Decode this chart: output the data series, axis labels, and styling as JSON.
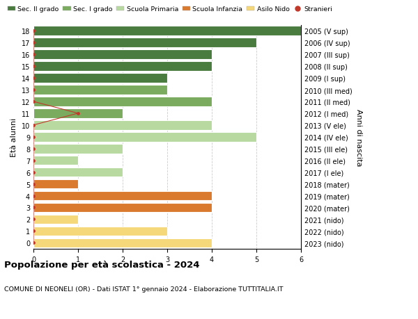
{
  "ages": [
    18,
    17,
    16,
    15,
    14,
    13,
    12,
    11,
    10,
    9,
    8,
    7,
    6,
    5,
    4,
    3,
    2,
    1,
    0
  ],
  "years": [
    "2005 (V sup)",
    "2006 (IV sup)",
    "2007 (III sup)",
    "2008 (II sup)",
    "2009 (I sup)",
    "2010 (III med)",
    "2011 (II med)",
    "2012 (I med)",
    "2013 (V ele)",
    "2014 (IV ele)",
    "2015 (III ele)",
    "2016 (II ele)",
    "2017 (I ele)",
    "2018 (mater)",
    "2019 (mater)",
    "2020 (mater)",
    "2021 (nido)",
    "2022 (nido)",
    "2023 (nido)"
  ],
  "values": [
    6,
    5,
    4,
    4,
    3,
    3,
    4,
    2,
    4,
    5,
    2,
    1,
    2,
    1,
    4,
    4,
    1,
    3,
    4
  ],
  "stranieri": [
    0,
    0,
    0,
    0,
    0,
    0,
    0,
    1,
    0,
    0,
    0,
    0,
    0,
    0,
    0,
    0,
    0,
    0,
    0
  ],
  "bar_colors": [
    "#4a7c3f",
    "#4a7c3f",
    "#4a7c3f",
    "#4a7c3f",
    "#4a7c3f",
    "#7aab5e",
    "#7aab5e",
    "#7aab5e",
    "#b8d9a0",
    "#b8d9a0",
    "#b8d9a0",
    "#b8d9a0",
    "#b8d9a0",
    "#d97a2e",
    "#d97a2e",
    "#d97a2e",
    "#f5d87a",
    "#f5d87a",
    "#f5d87a"
  ],
  "legend_labels": [
    "Sec. II grado",
    "Sec. I grado",
    "Scuola Primaria",
    "Scuola Infanzia",
    "Asilo Nido",
    "Stranieri"
  ],
  "legend_colors": [
    "#4a7c3f",
    "#7aab5e",
    "#b8d9a0",
    "#d97a2e",
    "#f5d87a",
    "#c0392b"
  ],
  "stranieri_color": "#c0392b",
  "stranieri_line_color": "#c0392b",
  "title": "Popolazione per età scolastica - 2024",
  "subtitle": "COMUNE DI NEONELI (OR) - Dati ISTAT 1° gennaio 2024 - Elaborazione TUTTITALIA.IT",
  "ylabel": "Età alunni",
  "ylabel2": "Anni di nascita",
  "xlabel": "",
  "xlim": [
    0,
    6
  ],
  "background_color": "#ffffff",
  "grid_color": "#cccccc",
  "bar_height": 0.8,
  "bar_edge_color": "#ffffff",
  "bar_linewidth": 0.8
}
